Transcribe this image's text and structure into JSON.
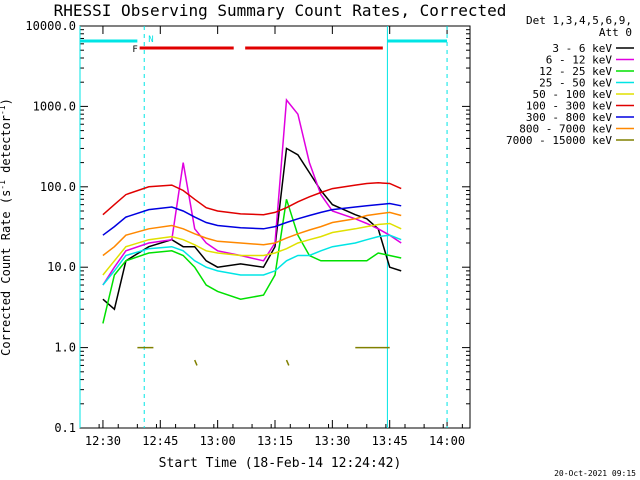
{
  "chart_data": {
    "type": "line",
    "title": "RHESSI Observing Summary Count Rates, Corrected",
    "xlabel": "Start Time (18-Feb-14 12:24:42)",
    "ylabel": "Corrected Count Rate (s⁻¹ detector⁻¹)",
    "ylabel_main": "Corrected Count Rate (s",
    "ylabel_sup1": "-1",
    "ylabel_mid": " detector",
    "ylabel_sup2": "-1",
    "ylabel_end": ")",
    "yscale": "log",
    "ylim": [
      0.1,
      10000
    ],
    "xlim_minutes": [
      12.4,
      14.1
    ],
    "x_ticks": [
      {
        "label": "12:30",
        "t": 12.5
      },
      {
        "label": "12:45",
        "t": 12.75
      },
      {
        "label": "13:00",
        "t": 13.0
      },
      {
        "label": "13:15",
        "t": 13.25
      },
      {
        "label": "13:30",
        "t": 13.5
      },
      {
        "label": "13:45",
        "t": 13.75
      },
      {
        "label": "14:00",
        "t": 14.0
      }
    ],
    "y_ticks": [
      {
        "label": "0.1",
        "v": 0.1
      },
      {
        "label": "1.0",
        "v": 1
      },
      {
        "label": "10.0",
        "v": 10
      },
      {
        "label": "100.0",
        "v": 100
      },
      {
        "label": "1000.0",
        "v": 1000
      },
      {
        "label": "10000.0",
        "v": 10000
      }
    ],
    "legend_header": [
      "Det 1,3,4,5,6,9,",
      "Att 0"
    ],
    "legend_position": "right",
    "footer_timestamp": "20-Oct-2021 09:15",
    "flag_labels": {
      "F": "F",
      "N": "N"
    },
    "flag_colors": {
      "cyan": "#00e5e5",
      "red": "#e00000"
    },
    "series": [
      {
        "name": "3 - 6 keV",
        "color": "#000000",
        "points": [
          [
            12.5,
            4
          ],
          [
            12.55,
            3
          ],
          [
            12.6,
            12
          ],
          [
            12.7,
            18
          ],
          [
            12.8,
            22
          ],
          [
            12.85,
            18
          ],
          [
            12.9,
            18
          ],
          [
            12.95,
            12
          ],
          [
            13.0,
            10
          ],
          [
            13.1,
            11
          ],
          [
            13.2,
            10
          ],
          [
            13.25,
            18
          ],
          [
            13.3,
            300
          ],
          [
            13.35,
            250
          ],
          [
            13.4,
            150
          ],
          [
            13.45,
            90
          ],
          [
            13.5,
            60
          ],
          [
            13.6,
            45
          ],
          [
            13.65,
            40
          ],
          [
            13.7,
            30
          ],
          [
            13.75,
            10
          ],
          [
            13.8,
            9
          ]
        ]
      },
      {
        "name": "6 - 12 keV",
        "color": "#e000e0",
        "points": [
          [
            12.5,
            6
          ],
          [
            12.55,
            10
          ],
          [
            12.6,
            16
          ],
          [
            12.7,
            20
          ],
          [
            12.8,
            22
          ],
          [
            12.85,
            200
          ],
          [
            12.9,
            30
          ],
          [
            12.95,
            20
          ],
          [
            13.0,
            16
          ],
          [
            13.1,
            14
          ],
          [
            13.2,
            12
          ],
          [
            13.25,
            20
          ],
          [
            13.3,
            1200
          ],
          [
            13.35,
            800
          ],
          [
            13.4,
            200
          ],
          [
            13.45,
            80
          ],
          [
            13.5,
            50
          ],
          [
            13.6,
            40
          ],
          [
            13.65,
            35
          ],
          [
            13.7,
            30
          ],
          [
            13.75,
            25
          ],
          [
            13.8,
            20
          ]
        ]
      },
      {
        "name": "12 - 25 keV",
        "color": "#00e000",
        "points": [
          [
            12.5,
            2
          ],
          [
            12.55,
            8
          ],
          [
            12.6,
            12
          ],
          [
            12.7,
            15
          ],
          [
            12.8,
            16
          ],
          [
            12.85,
            14
          ],
          [
            12.9,
            10
          ],
          [
            12.95,
            6
          ],
          [
            13.0,
            5
          ],
          [
            13.1,
            4
          ],
          [
            13.2,
            4.5
          ],
          [
            13.25,
            8
          ],
          [
            13.3,
            70
          ],
          [
            13.35,
            25
          ],
          [
            13.4,
            14
          ],
          [
            13.45,
            12
          ],
          [
            13.5,
            12
          ],
          [
            13.6,
            12
          ],
          [
            13.65,
            12
          ],
          [
            13.7,
            15
          ],
          [
            13.75,
            14
          ],
          [
            13.8,
            13
          ]
        ]
      },
      {
        "name": "25 - 50 keV",
        "color": "#00e5e5",
        "points": [
          [
            12.5,
            6
          ],
          [
            12.55,
            9
          ],
          [
            12.6,
            14
          ],
          [
            12.7,
            17
          ],
          [
            12.8,
            18
          ],
          [
            12.85,
            16
          ],
          [
            12.9,
            12
          ],
          [
            12.95,
            10
          ],
          [
            13.0,
            9
          ],
          [
            13.1,
            8
          ],
          [
            13.2,
            8
          ],
          [
            13.25,
            9
          ],
          [
            13.3,
            12
          ],
          [
            13.35,
            14
          ],
          [
            13.4,
            14
          ],
          [
            13.45,
            16
          ],
          [
            13.5,
            18
          ],
          [
            13.6,
            20
          ],
          [
            13.65,
            22
          ],
          [
            13.7,
            24
          ],
          [
            13.75,
            25
          ],
          [
            13.8,
            22
          ]
        ]
      },
      {
        "name": "50 - 100 keV",
        "color": "#e0e000",
        "points": [
          [
            12.5,
            8
          ],
          [
            12.55,
            12
          ],
          [
            12.6,
            18
          ],
          [
            12.7,
            22
          ],
          [
            12.8,
            24
          ],
          [
            12.85,
            22
          ],
          [
            12.9,
            19
          ],
          [
            12.95,
            16
          ],
          [
            13.0,
            15
          ],
          [
            13.1,
            14
          ],
          [
            13.2,
            14
          ],
          [
            13.25,
            15
          ],
          [
            13.3,
            17
          ],
          [
            13.35,
            20
          ],
          [
            13.4,
            22
          ],
          [
            13.45,
            24
          ],
          [
            13.5,
            27
          ],
          [
            13.6,
            30
          ],
          [
            13.65,
            32
          ],
          [
            13.7,
            34
          ],
          [
            13.75,
            35
          ],
          [
            13.8,
            30
          ]
        ]
      },
      {
        "name": "100 - 300 keV",
        "color": "#e00000",
        "points": [
          [
            12.5,
            45
          ],
          [
            12.55,
            60
          ],
          [
            12.6,
            80
          ],
          [
            12.7,
            100
          ],
          [
            12.8,
            105
          ],
          [
            12.85,
            90
          ],
          [
            12.9,
            70
          ],
          [
            12.95,
            55
          ],
          [
            13.0,
            50
          ],
          [
            13.1,
            46
          ],
          [
            13.2,
            45
          ],
          [
            13.25,
            48
          ],
          [
            13.3,
            55
          ],
          [
            13.35,
            65
          ],
          [
            13.4,
            75
          ],
          [
            13.45,
            85
          ],
          [
            13.5,
            95
          ],
          [
            13.6,
            105
          ],
          [
            13.65,
            110
          ],
          [
            13.7,
            112
          ],
          [
            13.75,
            110
          ],
          [
            13.8,
            95
          ]
        ]
      },
      {
        "name": "300 - 800 keV",
        "color": "#0000e0",
        "points": [
          [
            12.5,
            25
          ],
          [
            12.55,
            32
          ],
          [
            12.6,
            42
          ],
          [
            12.7,
            52
          ],
          [
            12.8,
            56
          ],
          [
            12.85,
            50
          ],
          [
            12.9,
            42
          ],
          [
            12.95,
            36
          ],
          [
            13.0,
            33
          ],
          [
            13.1,
            31
          ],
          [
            13.2,
            30
          ],
          [
            13.25,
            32
          ],
          [
            13.3,
            36
          ],
          [
            13.35,
            40
          ],
          [
            13.4,
            44
          ],
          [
            13.45,
            48
          ],
          [
            13.5,
            52
          ],
          [
            13.6,
            56
          ],
          [
            13.65,
            58
          ],
          [
            13.7,
            60
          ],
          [
            13.75,
            62
          ],
          [
            13.8,
            58
          ]
        ]
      },
      {
        "name": "800 - 7000 keV",
        "color": "#ff8800",
        "points": [
          [
            12.5,
            14
          ],
          [
            12.55,
            18
          ],
          [
            12.6,
            25
          ],
          [
            12.7,
            30
          ],
          [
            12.8,
            33
          ],
          [
            12.85,
            30
          ],
          [
            12.9,
            26
          ],
          [
            12.95,
            23
          ],
          [
            13.0,
            21
          ],
          [
            13.1,
            20
          ],
          [
            13.2,
            19
          ],
          [
            13.25,
            20
          ],
          [
            13.3,
            23
          ],
          [
            13.35,
            26
          ],
          [
            13.4,
            29
          ],
          [
            13.45,
            32
          ],
          [
            13.5,
            36
          ],
          [
            13.6,
            40
          ],
          [
            13.65,
            44
          ],
          [
            13.7,
            46
          ],
          [
            13.75,
            48
          ],
          [
            13.8,
            44
          ]
        ]
      },
      {
        "name": "7000 - 15000 keV",
        "color": "#808000",
        "segments": [
          [
            [
              12.65,
              1.0
            ],
            [
              12.72,
              1.0
            ]
          ],
          [
            [
              12.9,
              0.7
            ],
            [
              12.91,
              0.6
            ]
          ],
          [
            [
              13.3,
              0.7
            ],
            [
              13.31,
              0.6
            ]
          ],
          [
            [
              13.6,
              1.0
            ],
            [
              13.75,
              1.0
            ]
          ]
        ]
      }
    ],
    "flags": {
      "cyan_bars": [
        [
          12.4,
          12.65
        ],
        [
          13.74,
          14.0
        ]
      ],
      "cyan_dashed": [
        12.68,
        14.0
      ],
      "cyan_solid": [
        12.4,
        13.74
      ],
      "red_bars": [
        [
          12.66,
          13.07
        ],
        [
          13.12,
          13.72
        ]
      ],
      "red_F_at": 12.64,
      "cyan_N_at": 12.68
    }
  }
}
